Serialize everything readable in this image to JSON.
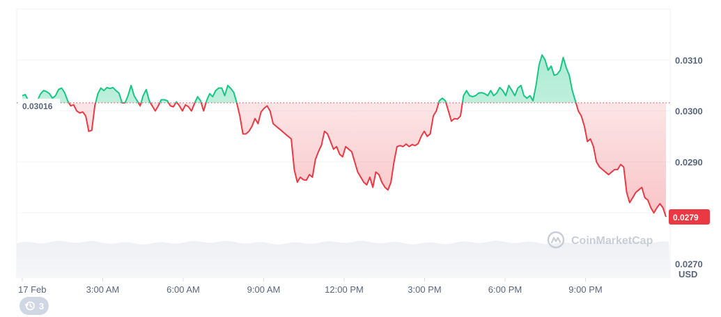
{
  "chart_data": {
    "type": "area",
    "x_labels": [
      "17 Feb",
      "3:00 AM",
      "6:00 AM",
      "9:00 AM",
      "12:00 PM",
      "3:00 PM",
      "6:00 PM",
      "9:00 PM"
    ],
    "y_ticks": [
      "0.0310",
      "0.0300",
      "0.0290",
      "0.0270"
    ],
    "y_tick_values": [
      0.031,
      0.03,
      0.029,
      0.027
    ],
    "ylim": [
      0.02672,
      0.032
    ],
    "baseline_value": 0.03016,
    "baseline_label": "0.03016",
    "current_label": "0.0279",
    "unit": "USD",
    "up_color": "#16c784",
    "down_color": "#ea3943",
    "volume_area": true,
    "series": [
      {
        "values": [
          0.0303,
          0.03032,
          0.0302,
          0.03005,
          0.03,
          0.0302,
          0.03033,
          0.0304,
          0.03038,
          0.03034,
          0.03025,
          0.0303,
          0.03042,
          0.03045,
          0.03036,
          0.0302,
          0.0301,
          0.03012,
          0.03,
          0.02996,
          0.02998,
          0.0299,
          0.0296,
          0.02962,
          0.0301,
          0.03034,
          0.03045,
          0.0304,
          0.03046,
          0.03044,
          0.03046,
          0.0304,
          0.03035,
          0.03016,
          0.03016,
          0.0303,
          0.0305,
          0.0303,
          0.0302,
          0.0301,
          0.0303,
          0.03042,
          0.0302,
          0.0301,
          0.03,
          0.0301,
          0.03022,
          0.03022,
          0.0302,
          0.0301,
          0.03008,
          0.03018,
          0.0301,
          0.03,
          0.03012,
          0.03008,
          0.03,
          0.03015,
          0.03028,
          0.0302,
          0.03,
          0.0302,
          0.03034,
          0.03028,
          0.0304,
          0.03045,
          0.03045,
          0.0303,
          0.0305,
          0.03044,
          0.03036,
          0.03015,
          0.0299,
          0.02955,
          0.02955,
          0.0296,
          0.0297,
          0.02985,
          0.02975,
          0.02998,
          0.03005,
          0.0301,
          0.03,
          0.02975,
          0.0297,
          0.02965,
          0.0296,
          0.02955,
          0.0295,
          0.02945,
          0.02885,
          0.0286,
          0.0287,
          0.02865,
          0.02864,
          0.02875,
          0.0287,
          0.02905,
          0.0292,
          0.02933,
          0.0296,
          0.02955,
          0.0294,
          0.02925,
          0.0293,
          0.02915,
          0.0291,
          0.0293,
          0.02925,
          0.0292,
          0.029,
          0.0288,
          0.0287,
          0.0286,
          0.02855,
          0.0287,
          0.0285,
          0.0288,
          0.02875,
          0.0286,
          0.0285,
          0.02845,
          0.0286,
          0.029,
          0.0293,
          0.02932,
          0.0293,
          0.02935,
          0.0293,
          0.02934,
          0.02932,
          0.02936,
          0.0295,
          0.0296,
          0.0295,
          0.02955,
          0.0299,
          0.03,
          0.0302,
          0.03025,
          0.0302,
          0.03,
          0.0298,
          0.02985,
          0.02984,
          0.0299,
          0.0303,
          0.0304,
          0.0303,
          0.03028,
          0.0303,
          0.03035,
          0.03036,
          0.03034,
          0.0303,
          0.0304,
          0.0303,
          0.03035,
          0.03046,
          0.0304,
          0.0303,
          0.0305,
          0.0304,
          0.0303,
          0.03045,
          0.0305,
          0.0303,
          0.03025,
          0.0303,
          0.0302,
          0.0305,
          0.0309,
          0.0311,
          0.031,
          0.0308,
          0.03088,
          0.0307,
          0.03072,
          0.0308,
          0.03105,
          0.03085,
          0.0307,
          0.0304,
          0.0302,
          0.03,
          0.0299,
          0.0297,
          0.0294,
          0.02945,
          0.0293,
          0.029,
          0.0289,
          0.02885,
          0.0288,
          0.02875,
          0.0288,
          0.02885,
          0.02885,
          0.02895,
          0.0289,
          0.0284,
          0.0282,
          0.0283,
          0.0284,
          0.02845,
          0.0285,
          0.0283,
          0.02825,
          0.0281,
          0.028,
          0.0281,
          0.02818,
          0.0281,
          0.02792
        ]
      }
    ]
  },
  "watermark": {
    "text": "CoinMarketCap"
  },
  "badge": {
    "count": "3",
    "icon": "history-clock-icon"
  }
}
